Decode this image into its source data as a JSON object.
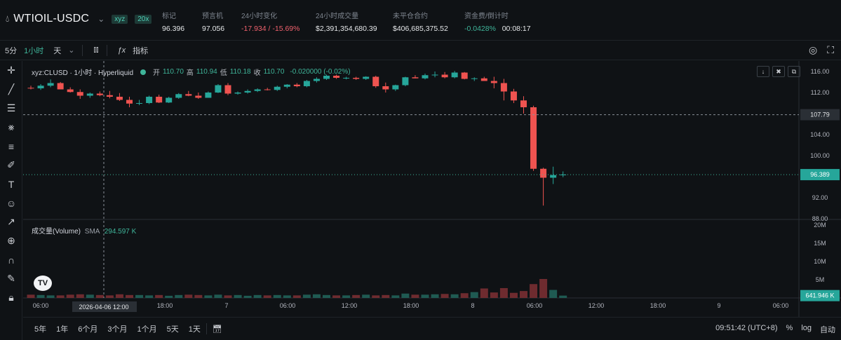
{
  "header": {
    "symbol": "WTIOIL-USDC",
    "tag1": "xyz",
    "tag2": "20x",
    "stats": [
      {
        "label": "标记",
        "value": "96.396",
        "tone": "neutral"
      },
      {
        "label": "预言机",
        "value": "97.056",
        "tone": "neutral"
      },
      {
        "label": "24小时变化",
        "value": "-17.934 / -15.69%",
        "tone": "neg"
      },
      {
        "label": "24小时成交量",
        "value": "$2,391,354,680.39",
        "tone": "neutral"
      },
      {
        "label": "未平仓合约",
        "value": "$406,685,375.52",
        "tone": "neutral"
      },
      {
        "label": "资金费/倒计时",
        "value": "-0.0428%",
        "value2": "00:08:17",
        "tone": "pos"
      }
    ]
  },
  "toolbar": {
    "intervals": [
      "5分",
      "1小时",
      "天"
    ],
    "active_interval": "1小时",
    "indicators_label": "指标"
  },
  "legend": {
    "title": "xyz:CLUSD · 1小时 · Hyperliquid",
    "open_label": "开",
    "open": "110.70",
    "high_label": "高",
    "high": "110.94",
    "low_label": "低",
    "low": "110.18",
    "close_label": "收",
    "close": "110.70",
    "change": "-0.020000 (-0.02%)"
  },
  "volume_legend": {
    "title": "成交量(Volume)",
    "sma_label": "SMA",
    "sma_value": "294.597 K"
  },
  "price_axis": {
    "ticks": [
      "116.00",
      "112.00",
      "108.00",
      "104.00",
      "100.00",
      "96.00",
      "92.00",
      "88.00"
    ],
    "crosshair_price": "107.79",
    "last_price": "96.389"
  },
  "volume_axis": {
    "ticks": [
      "20M",
      "15M",
      "10M",
      "5M"
    ],
    "last_volume": "641.946 K"
  },
  "time_axis": {
    "ticks": [
      "06:00",
      "18:00",
      "7",
      "06:00",
      "12:00",
      "18:00",
      "8",
      "06:00",
      "12:00",
      "18:00",
      "9",
      "06:00"
    ],
    "crosshair_time": "2026-04-06  12:00"
  },
  "bottom": {
    "ranges": [
      "5年",
      "1年",
      "6个月",
      "3个月",
      "1个月",
      "5天",
      "1天"
    ],
    "clock": "09:51:42 (UTC+8)",
    "pct": "%",
    "log": "log",
    "auto": "自动"
  },
  "colors": {
    "up": "#26a69a",
    "down": "#ef5350",
    "bg": "#0f1215"
  },
  "chart_data": {
    "type": "candlestick",
    "interval": "1小时",
    "y_range": [
      88,
      118
    ],
    "candles": [
      [
        112.9,
        113.3,
        112.6,
        112.8
      ],
      [
        112.8,
        113.6,
        112.5,
        113.3
      ],
      [
        113.3,
        114.5,
        113.0,
        113.8
      ],
      [
        113.8,
        114.0,
        112.7,
        112.6
      ],
      [
        112.6,
        113.0,
        112.0,
        112.1
      ],
      [
        112.1,
        112.6,
        110.8,
        111.4
      ],
      [
        111.4,
        112.0,
        111.0,
        111.8
      ],
      [
        111.8,
        112.2,
        111.3,
        111.5
      ],
      [
        111.5,
        112.3,
        110.9,
        111.2
      ],
      [
        111.2,
        111.9,
        110.4,
        110.6
      ],
      [
        110.6,
        111.2,
        109.2,
        109.9
      ],
      [
        109.9,
        110.6,
        109.6,
        110.0
      ],
      [
        110.0,
        111.4,
        109.8,
        111.2
      ],
      [
        111.2,
        111.6,
        110.0,
        110.1
      ],
      [
        110.1,
        111.2,
        110.0,
        111.0
      ],
      [
        111.0,
        111.9,
        110.8,
        111.7
      ],
      [
        111.7,
        112.3,
        111.3,
        111.4
      ],
      [
        111.4,
        112.0,
        110.8,
        111.0
      ],
      [
        111.0,
        112.2,
        111.0,
        112.0
      ],
      [
        112.0,
        113.6,
        111.9,
        113.4
      ],
      [
        113.4,
        113.8,
        111.5,
        111.8
      ],
      [
        111.8,
        112.2,
        111.6,
        112.0
      ],
      [
        112.0,
        112.6,
        111.8,
        112.3
      ],
      [
        112.3,
        112.8,
        112.1,
        112.6
      ],
      [
        112.6,
        112.9,
        112.4,
        112.5
      ],
      [
        112.5,
        113.3,
        112.3,
        113.1
      ],
      [
        113.1,
        113.6,
        112.8,
        113.5
      ],
      [
        113.5,
        113.8,
        113.0,
        113.2
      ],
      [
        113.2,
        114.4,
        113.0,
        114.2
      ],
      [
        114.2,
        114.9,
        113.9,
        114.6
      ],
      [
        114.6,
        115.4,
        114.4,
        115.2
      ],
      [
        115.2,
        115.4,
        114.6,
        114.8
      ],
      [
        114.8,
        115.0,
        114.5,
        114.8
      ],
      [
        114.8,
        115.0,
        114.4,
        114.6
      ],
      [
        114.6,
        115.1,
        114.4,
        115.0
      ],
      [
        115.0,
        115.2,
        112.9,
        113.2
      ],
      [
        113.2,
        113.9,
        112.0,
        112.6
      ],
      [
        112.6,
        113.5,
        112.3,
        113.4
      ],
      [
        113.4,
        115.0,
        113.2,
        114.9
      ],
      [
        114.9,
        115.3,
        114.7,
        114.7
      ],
      [
        114.7,
        115.6,
        114.5,
        115.3
      ],
      [
        115.3,
        116.0,
        114.9,
        115.4
      ],
      [
        115.4,
        115.9,
        114.7,
        114.9
      ],
      [
        114.9,
        116.1,
        114.7,
        115.8
      ],
      [
        115.8,
        115.9,
        114.5,
        114.6
      ],
      [
        114.6,
        114.9,
        114.2,
        114.7
      ],
      [
        114.7,
        115.0,
        114.2,
        114.2
      ],
      [
        114.2,
        115.0,
        112.8,
        113.8
      ],
      [
        113.8,
        114.6,
        110.5,
        112.2
      ],
      [
        112.2,
        112.7,
        110.0,
        110.5
      ],
      [
        110.5,
        111.3,
        108.0,
        109.2
      ],
      [
        109.2,
        109.5,
        97.1,
        97.5
      ],
      [
        97.5,
        97.7,
        90.5,
        95.8
      ],
      [
        95.8,
        97.9,
        94.6,
        96.3
      ],
      [
        96.3,
        97.0,
        95.9,
        96.4
      ]
    ],
    "volumes": [
      0.9,
      0.8,
      0.7,
      0.7,
      0.9,
      1.0,
      0.9,
      0.8,
      0.7,
      1.0,
      0.8,
      0.8,
      0.7,
      0.8,
      0.6,
      0.8,
      0.9,
      0.8,
      0.7,
      0.9,
      0.7,
      0.8,
      0.6,
      0.8,
      0.7,
      0.8,
      0.7,
      0.7,
      0.9,
      1.0,
      0.8,
      0.7,
      0.7,
      0.8,
      0.9,
      0.7,
      0.8,
      0.7,
      1.2,
      0.9,
      0.9,
      1.0,
      1.1,
      1.0,
      1.3,
      1.6,
      2.6,
      1.5,
      2.7,
      1.4,
      1.9,
      3.8,
      5.2,
      2.2,
      0.64
    ]
  }
}
